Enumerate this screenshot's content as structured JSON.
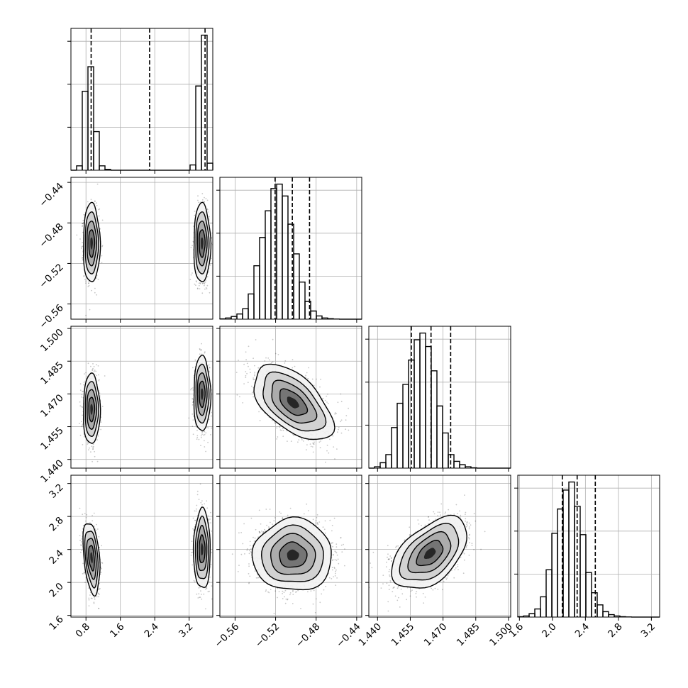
{
  "chart_data": {
    "type": "corner",
    "title": "",
    "grid": true,
    "parameters": [
      {
        "index": 0,
        "range": [
          0.45,
          3.75
        ],
        "ticks": [
          0.8,
          1.6,
          2.4,
          3.2
        ],
        "tick_labels": [
          "0.8",
          "1.6",
          "2.4",
          "3.2"
        ]
      },
      {
        "index": 1,
        "range": [
          -0.575,
          -0.435
        ],
        "ticks": [
          -0.56,
          -0.52,
          -0.48,
          -0.44
        ],
        "tick_labels": [
          "−0.56",
          "−0.52",
          "−0.48",
          "−0.44"
        ]
      },
      {
        "index": 2,
        "range": [
          1.436,
          1.501
        ],
        "ticks": [
          1.44,
          1.455,
          1.47,
          1.485,
          1.5
        ],
        "tick_labels": [
          "1.440",
          "1.455",
          "1.470",
          "1.485",
          "1.500"
        ]
      },
      {
        "index": 3,
        "range": [
          1.58,
          3.3
        ],
        "ticks": [
          1.6,
          2.0,
          2.4,
          2.8,
          3.2
        ],
        "tick_labels": [
          "1.6",
          "2.0",
          "2.4",
          "2.8",
          "3.2"
        ]
      }
    ],
    "histograms": [
      {
        "param": 0,
        "bin_edges": [
          0.45,
          0.582,
          0.714,
          0.846,
          0.978,
          1.11,
          1.242,
          1.374,
          1.506,
          1.638,
          1.77,
          1.902,
          2.034,
          2.166,
          2.298,
          2.43,
          2.562,
          2.694,
          2.826,
          2.958,
          3.09,
          3.222,
          3.354,
          3.486,
          3.618,
          3.75
        ],
        "counts": [
          0,
          25,
          450,
          590,
          220,
          25,
          5,
          0,
          0,
          0,
          0,
          0,
          0,
          0,
          0,
          0,
          0,
          0,
          0,
          0,
          0,
          30,
          480,
          770,
          40
        ],
        "quantile_lines": [
          0.92,
          2.28,
          3.57
        ]
      },
      {
        "param": 1,
        "bin_edges": [
          -0.575,
          -0.5694,
          -0.5638,
          -0.5582,
          -0.5526,
          -0.547,
          -0.5414,
          -0.5358,
          -0.5302,
          -0.5246,
          -0.519,
          -0.5134,
          -0.5078,
          -0.5022,
          -0.4966,
          -0.491,
          -0.4854,
          -0.4798,
          -0.4742,
          -0.4686,
          -0.463,
          -0.4574,
          -0.4518,
          -0.4462,
          -0.4406,
          -0.435
        ],
        "counts": [
          2,
          8,
          18,
          35,
          70,
          170,
          360,
          550,
          730,
          880,
          910,
          830,
          640,
          440,
          250,
          120,
          55,
          22,
          8,
          3,
          1,
          0,
          0,
          0,
          0
        ],
        "quantile_lines": [
          -0.5205,
          -0.5035,
          -0.4865
        ]
      },
      {
        "param": 2,
        "bin_edges": [
          1.436,
          1.4386,
          1.4412,
          1.4438,
          1.4464,
          1.449,
          1.4516,
          1.4542,
          1.4568,
          1.4594,
          1.462,
          1.4646,
          1.4672,
          1.4698,
          1.4724,
          1.475,
          1.4776,
          1.4802,
          1.4828,
          1.4854,
          1.488,
          1.4906,
          1.4932,
          1.4958,
          1.4984,
          1.501
        ],
        "counts": [
          0,
          10,
          40,
          100,
          300,
          480,
          620,
          800,
          950,
          1000,
          900,
          720,
          460,
          260,
          100,
          50,
          25,
          10,
          2,
          0,
          0,
          0,
          0,
          0,
          0
        ],
        "quantile_lines": [
          1.4555,
          1.4645,
          1.4735
        ]
      },
      {
        "param": 3,
        "bin_edges": [
          1.58,
          1.6488,
          1.7176,
          1.7864,
          1.8552,
          1.924,
          1.9928,
          2.0616,
          2.1304,
          2.1992,
          2.268,
          2.3368,
          2.4056,
          2.4744,
          2.5432,
          2.612,
          2.6808,
          2.7496,
          2.8184,
          2.8872,
          2.956,
          3.0248,
          3.0936,
          3.1624,
          3.2312,
          3.3
        ],
        "counts": [
          3,
          8,
          25,
          60,
          150,
          350,
          620,
          800,
          940,
          1000,
          820,
          610,
          330,
          180,
          90,
          40,
          18,
          8,
          3,
          1,
          0,
          0,
          0,
          0,
          0
        ],
        "quantile_lines": [
          2.12,
          2.3,
          2.52
        ]
      }
    ],
    "scatter_2d": [
      {
        "x_param": 0,
        "y_param": 1,
        "modes": [
          {
            "mean": [
              0.93,
              -0.5
            ],
            "sd": [
              0.085,
              0.017
            ],
            "rho": 0.0,
            "weight": 0.5
          },
          {
            "mean": [
              3.5,
              -0.5
            ],
            "sd": [
              0.085,
              0.017
            ],
            "rho": 0.0,
            "weight": 0.5
          }
        ]
      },
      {
        "x_param": 0,
        "y_param": 2,
        "modes": [
          {
            "mean": [
              0.93,
              1.463
            ],
            "sd": [
              0.085,
              0.007
            ],
            "rho": 0.0,
            "weight": 0.5
          },
          {
            "mean": [
              3.5,
              1.47
            ],
            "sd": [
              0.085,
              0.0075
            ],
            "rho": 0.0,
            "weight": 0.5
          }
        ]
      },
      {
        "x_param": 0,
        "y_param": 3,
        "modes": [
          {
            "mean": [
              0.93,
              2.3
            ],
            "sd": [
              0.085,
              0.19
            ],
            "rho": -0.35,
            "weight": 0.5
          },
          {
            "mean": [
              3.5,
              2.4
            ],
            "sd": [
              0.085,
              0.21
            ],
            "rho": 0.0,
            "weight": 0.5
          }
        ]
      },
      {
        "x_param": 1,
        "y_param": 2,
        "modes": [
          {
            "mean": [
              -0.503,
              1.466
            ],
            "sd": [
              0.017,
              0.0075
            ],
            "rho": -0.55,
            "weight": 1.0
          }
        ]
      },
      {
        "x_param": 1,
        "y_param": 3,
        "modes": [
          {
            "mean": [
              -0.503,
              2.33
            ],
            "sd": [
              0.017,
              0.19
            ],
            "rho": 0.0,
            "weight": 1.0
          }
        ]
      },
      {
        "x_param": 2,
        "y_param": 3,
        "modes": [
          {
            "mean": [
              1.464,
              2.35
            ],
            "sd": [
              0.0075,
              0.19
            ],
            "rho": 0.5,
            "weight": 1.0
          }
        ]
      }
    ]
  }
}
